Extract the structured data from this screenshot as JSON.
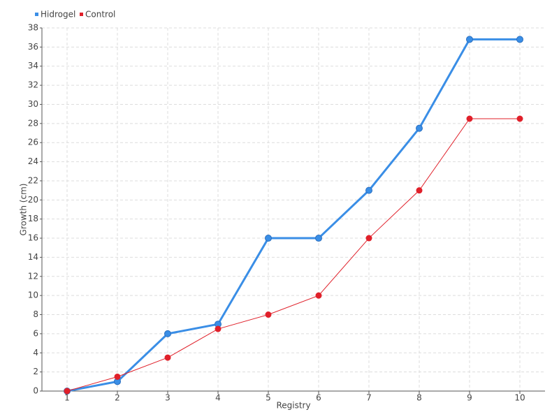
{
  "chart_data": {
    "type": "line",
    "x_label": "Registry",
    "y_label": "Growth (cm)",
    "categories": [
      "1",
      "2",
      "3",
      "4",
      "5",
      "6",
      "7",
      "8",
      "9",
      "10"
    ],
    "series": [
      {
        "name": "Hidrogel",
        "color": "#3a8ee6",
        "values": [
          0,
          1,
          6,
          7,
          16,
          16,
          21,
          27.5,
          36.8,
          36.8
        ]
      },
      {
        "name": "Control",
        "color": "#e0202a",
        "values": [
          0,
          1.5,
          3.5,
          6.5,
          8,
          10,
          16,
          21,
          28.5,
          28.5
        ]
      }
    ],
    "ylim": [
      0,
      38
    ],
    "yticks": [
      0,
      2,
      4,
      6,
      8,
      10,
      12,
      14,
      16,
      18,
      20,
      22,
      24,
      26,
      28,
      30,
      32,
      34,
      36,
      38
    ],
    "grid": true,
    "legend": "top-left"
  }
}
